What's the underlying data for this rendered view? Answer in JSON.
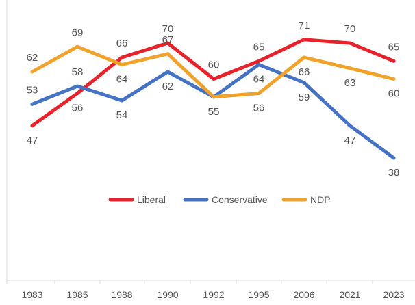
{
  "chart_data": {
    "type": "line",
    "categories": [
      "1983",
      "1985",
      "1988",
      "1990",
      "1992",
      "1995",
      "2006",
      "2021",
      "2023"
    ],
    "series": [
      {
        "name": "Liberal",
        "color": "#e8222b",
        "values": [
          47,
          56,
          66,
          70,
          60,
          65,
          71,
          70,
          65
        ]
      },
      {
        "name": "Conservative",
        "color": "#4472c4",
        "values": [
          53,
          58,
          54,
          62,
          55,
          64,
          59,
          47,
          38
        ]
      },
      {
        "name": "NDP",
        "color": "#f0a22a",
        "values": [
          62,
          69,
          64,
          67,
          55,
          56,
          66,
          63,
          60
        ]
      }
    ],
    "legend_position": "center",
    "grid": false
  }
}
